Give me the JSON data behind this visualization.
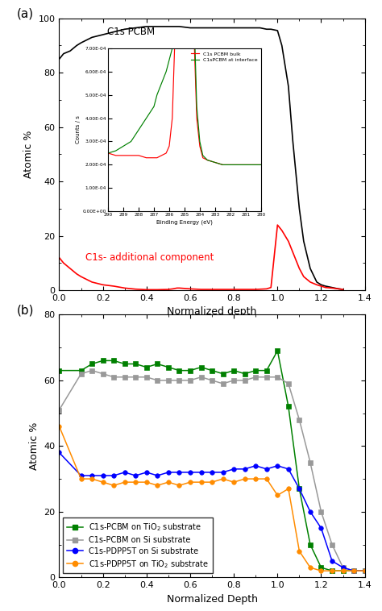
{
  "panel_a": {
    "black_x": [
      0.0,
      0.02,
      0.05,
      0.08,
      0.1,
      0.15,
      0.2,
      0.25,
      0.3,
      0.35,
      0.4,
      0.45,
      0.5,
      0.55,
      0.6,
      0.65,
      0.7,
      0.75,
      0.8,
      0.82,
      0.85,
      0.87,
      0.9,
      0.92,
      0.95,
      0.97,
      1.0,
      1.02,
      1.05,
      1.07,
      1.1,
      1.12,
      1.15,
      1.18,
      1.2,
      1.22,
      1.25,
      1.28,
      1.3
    ],
    "black_y": [
      85,
      87,
      88,
      90,
      91,
      93,
      94,
      95,
      96,
      96.5,
      97,
      97,
      97,
      97,
      96.5,
      96.5,
      96.5,
      96.5,
      96.5,
      96.5,
      96.5,
      96.5,
      96.5,
      96.5,
      96,
      96,
      95.5,
      90,
      75,
      55,
      30,
      18,
      8,
      3,
      2,
      1.5,
      1,
      0.5,
      0.3
    ],
    "red_x": [
      0.0,
      0.02,
      0.05,
      0.08,
      0.1,
      0.15,
      0.2,
      0.25,
      0.3,
      0.35,
      0.4,
      0.45,
      0.5,
      0.52,
      0.54,
      0.55,
      0.6,
      0.65,
      0.7,
      0.75,
      0.8,
      0.85,
      0.9,
      0.95,
      0.97,
      1.0,
      1.02,
      1.05,
      1.07,
      1.1,
      1.12,
      1.15,
      1.18,
      1.2,
      1.22,
      1.25,
      1.28,
      1.3
    ],
    "red_y": [
      12,
      10,
      8,
      6,
      5,
      3,
      2,
      1.5,
      0.8,
      0.4,
      0.2,
      0.2,
      0.3,
      0.5,
      0.8,
      0.8,
      0.5,
      0.3,
      0.3,
      0.3,
      0.3,
      0.3,
      0.3,
      0.5,
      1.0,
      24,
      22,
      18,
      14,
      8,
      5,
      3,
      2,
      1.5,
      1.0,
      0.8,
      0.5,
      0.3
    ],
    "black_label": "C1s PCBM",
    "red_label": "C1s- additional component",
    "xlabel": "Normalized depth",
    "ylabel": "Atomic %",
    "xlim": [
      0.0,
      1.4
    ],
    "ylim": [
      0,
      100
    ],
    "yticks": [
      0,
      20,
      40,
      60,
      80,
      100
    ],
    "xticks": [
      0.0,
      0.2,
      0.4,
      0.6,
      0.8,
      1.0,
      1.2,
      1.4
    ]
  },
  "inset": {
    "red_x": [
      290,
      289.5,
      289,
      288.5,
      288,
      287.5,
      287,
      286.8,
      286.5,
      286.2,
      286.0,
      285.8,
      285.6,
      285.4,
      285.2,
      285.0,
      284.9,
      284.8,
      284.6,
      284.4,
      284.2,
      284.0,
      283.8,
      283.5,
      283.0,
      282.5,
      282.0,
      281.5,
      281.0,
      280.5,
      280.0
    ],
    "red_y": [
      0.00025,
      0.00024,
      0.00024,
      0.00024,
      0.00024,
      0.00023,
      0.00023,
      0.00023,
      0.00024,
      0.00025,
      0.00028,
      0.0004,
      0.0008,
      0.0025,
      0.0048,
      0.0055,
      0.0052,
      0.0042,
      0.002,
      0.0008,
      0.0004,
      0.00028,
      0.00023,
      0.00022,
      0.00021,
      0.0002,
      0.0002,
      0.0002,
      0.0002,
      0.0002,
      0.0002
    ],
    "green_x": [
      290,
      289.5,
      289,
      288.5,
      288,
      287.5,
      287,
      286.8,
      286.5,
      286.2,
      286.0,
      285.8,
      285.6,
      285.4,
      285.2,
      285.0,
      284.9,
      284.8,
      284.6,
      284.4,
      284.2,
      284.0,
      283.8,
      283.5,
      283.0,
      282.5,
      282.0,
      281.5,
      281.0,
      280.5,
      280.0
    ],
    "green_y": [
      0.00025,
      0.00026,
      0.00028,
      0.0003,
      0.00035,
      0.0004,
      0.00045,
      0.0005,
      0.00055,
      0.0006,
      0.00065,
      0.0007,
      0.00085,
      0.002,
      0.0045,
      0.0063,
      0.0058,
      0.0045,
      0.0022,
      0.0009,
      0.00045,
      0.0003,
      0.00024,
      0.00022,
      0.00021,
      0.0002,
      0.0002,
      0.0002,
      0.0002,
      0.0002,
      0.0002
    ],
    "xlabel": "Binding Energy (eV)",
    "ylabel": "Counts / s",
    "ylim_max": 0.0007,
    "xlim": [
      290,
      280
    ],
    "yticks": [
      0.0,
      0.0001,
      0.0002,
      0.0003,
      0.0004,
      0.0005,
      0.0006,
      0.0007
    ],
    "ytick_labels": [
      "0.00E+00",
      "1.00E-04",
      "2.00E-04",
      "3.00E-04",
      "4.00E-04",
      "5.00E-04",
      "6.00E-04",
      "7.00E-04"
    ],
    "xticks": [
      290,
      289,
      288,
      287,
      286,
      285,
      284,
      283,
      282,
      281,
      280
    ],
    "red_label": "C1s PCBM bulk",
    "green_label": "C1sPCBM at interface"
  },
  "panel_b": {
    "green_x": [
      0.0,
      0.1,
      0.15,
      0.2,
      0.25,
      0.3,
      0.35,
      0.4,
      0.45,
      0.5,
      0.55,
      0.6,
      0.65,
      0.7,
      0.75,
      0.8,
      0.85,
      0.9,
      0.95,
      1.0,
      1.05,
      1.1,
      1.15,
      1.2,
      1.25,
      1.3,
      1.35,
      1.4
    ],
    "green_y": [
      63,
      63,
      65,
      66,
      66,
      65,
      65,
      64,
      65,
      64,
      63,
      63,
      64,
      63,
      62,
      63,
      62,
      63,
      63,
      69,
      52,
      27,
      10,
      3,
      2,
      2,
      2,
      2
    ],
    "gray_x": [
      0.0,
      0.1,
      0.15,
      0.2,
      0.25,
      0.3,
      0.35,
      0.4,
      0.45,
      0.5,
      0.55,
      0.6,
      0.65,
      0.7,
      0.75,
      0.8,
      0.85,
      0.9,
      0.95,
      1.0,
      1.05,
      1.1,
      1.15,
      1.2,
      1.25,
      1.3,
      1.35,
      1.4
    ],
    "gray_y": [
      51,
      62,
      63,
      62,
      61,
      61,
      61,
      61,
      60,
      60,
      60,
      60,
      61,
      60,
      59,
      60,
      60,
      61,
      61,
      61,
      59,
      48,
      35,
      20,
      10,
      3,
      2,
      2
    ],
    "blue_x": [
      0.0,
      0.1,
      0.15,
      0.2,
      0.25,
      0.3,
      0.35,
      0.4,
      0.45,
      0.5,
      0.55,
      0.6,
      0.65,
      0.7,
      0.75,
      0.8,
      0.85,
      0.9,
      0.95,
      1.0,
      1.05,
      1.1,
      1.15,
      1.2,
      1.25,
      1.3,
      1.35,
      1.4
    ],
    "blue_y": [
      38,
      31,
      31,
      31,
      31,
      32,
      31,
      32,
      31,
      32,
      32,
      32,
      32,
      32,
      32,
      33,
      33,
      34,
      33,
      34,
      33,
      27,
      20,
      15,
      5,
      3,
      2,
      2
    ],
    "orange_x": [
      0.0,
      0.1,
      0.15,
      0.2,
      0.25,
      0.3,
      0.35,
      0.4,
      0.45,
      0.5,
      0.55,
      0.6,
      0.65,
      0.7,
      0.75,
      0.8,
      0.85,
      0.9,
      0.95,
      1.0,
      1.05,
      1.1,
      1.15,
      1.2,
      1.25,
      1.3,
      1.35,
      1.4
    ],
    "orange_y": [
      46,
      30,
      30,
      29,
      28,
      29,
      29,
      29,
      28,
      29,
      28,
      29,
      29,
      29,
      30,
      29,
      30,
      30,
      30,
      25,
      27,
      8,
      3,
      2,
      2,
      2,
      2,
      2
    ],
    "xlabel": "Normalized Depth",
    "ylabel": "Atomic %",
    "xlim": [
      0.0,
      1.4
    ],
    "ylim": [
      0,
      80
    ],
    "yticks": [
      0,
      20,
      40,
      60,
      80
    ],
    "xticks": [
      0.0,
      0.2,
      0.4,
      0.6,
      0.8,
      1.0,
      1.2,
      1.4
    ],
    "green_label": "C1s-PCBM on TiO$_2$ substrate",
    "gray_label": "C1s-PCBM on Si substrate",
    "blue_label": "C1s-PDPP5T on Si substrate",
    "orange_label": "C1s-PDPP5T on TiO$_2$ substrate"
  }
}
